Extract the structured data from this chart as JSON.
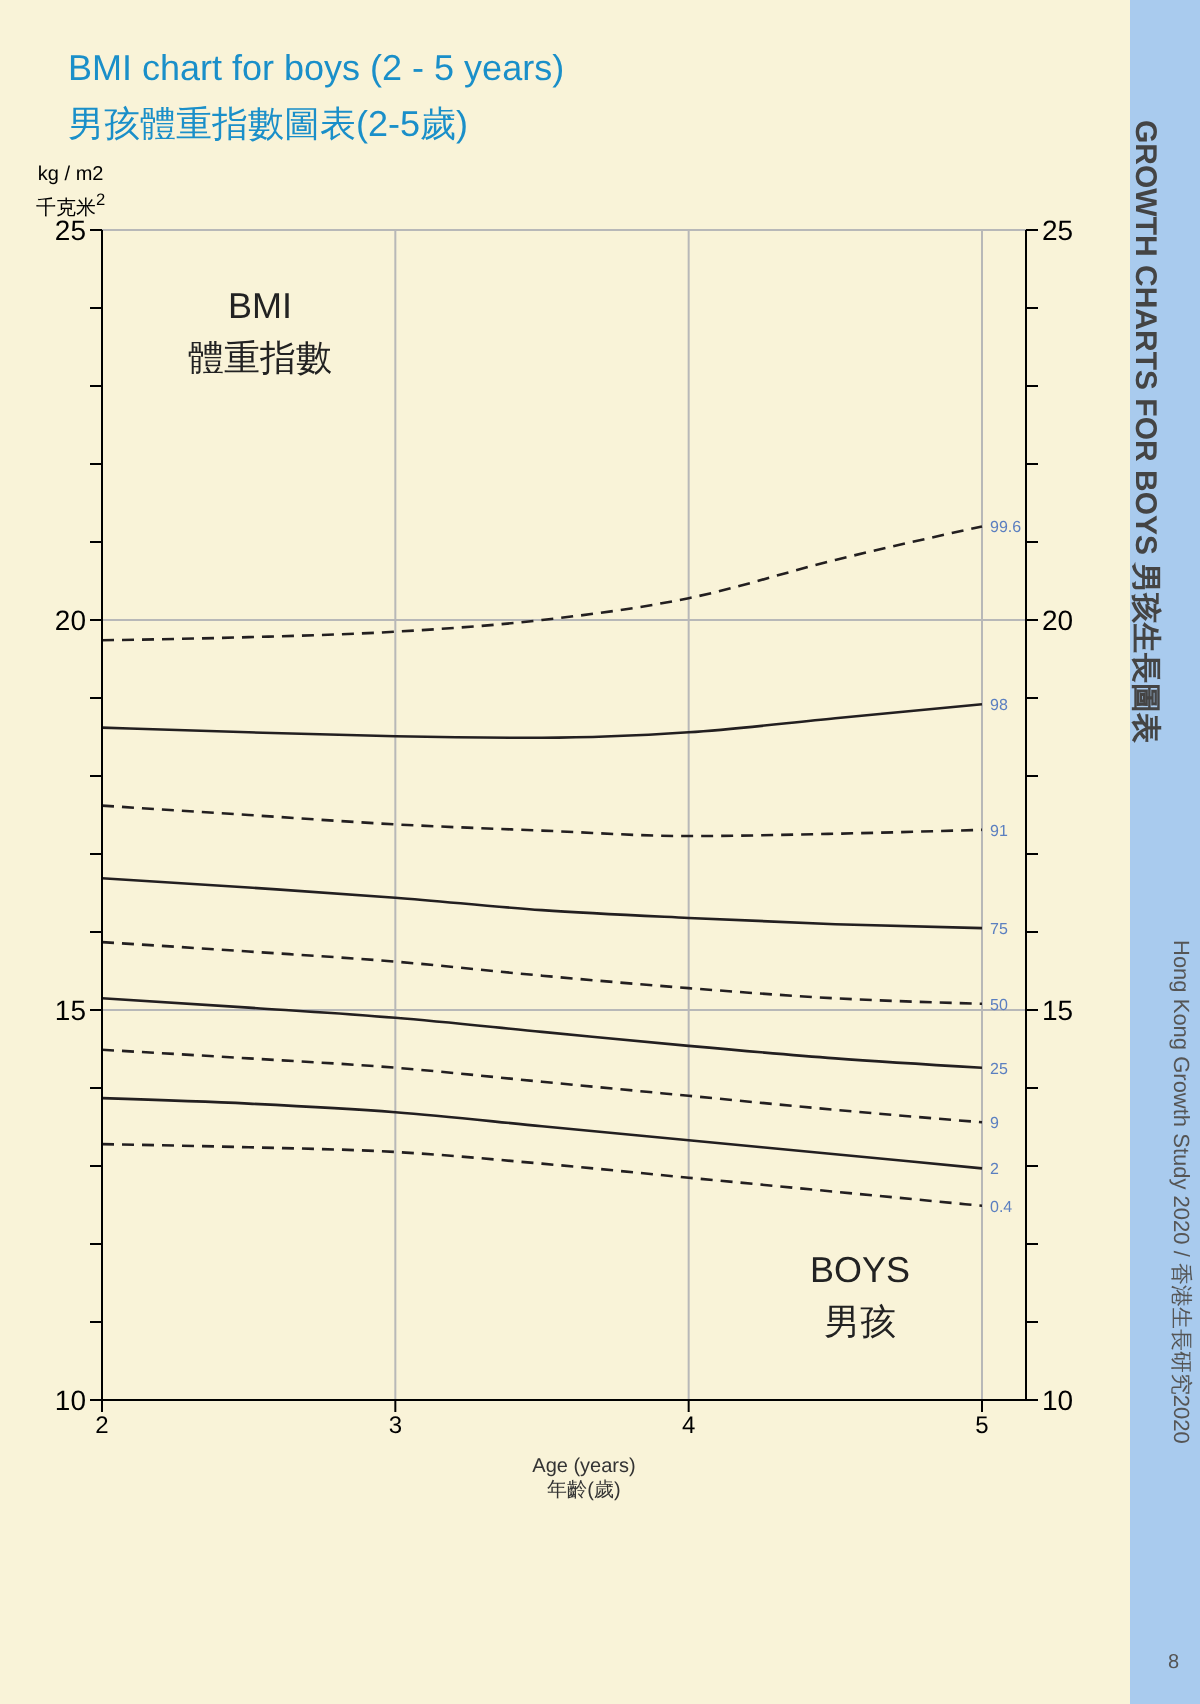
{
  "chart_data": {
    "type": "line",
    "title": "BMI chart for boys (2 - 5 years)",
    "subtitle": "男孩體重指數圖表(2-5歲)",
    "xlabel": "Age (years)\n年齡(歲)",
    "ylabel": "kg / m2\n千克米$^{2}$",
    "x": [
      2,
      2.5,
      3,
      3.5,
      4,
      4.5,
      5
    ],
    "series": [
      {
        "name": "99.6",
        "color": "#231f20",
        "line_style": "dashed",
        "values": [
          19.74,
          19.78,
          19.85,
          20.0,
          20.28,
          20.77,
          21.2
        ]
      },
      {
        "name": "98",
        "color": "#231f20",
        "line_style": "solid",
        "values": [
          18.62,
          18.56,
          18.51,
          18.49,
          18.56,
          18.74,
          18.92
        ]
      },
      {
        "name": "91",
        "color": "#231f20",
        "line_style": "dashed",
        "values": [
          17.62,
          17.5,
          17.38,
          17.3,
          17.23,
          17.26,
          17.31
        ]
      },
      {
        "name": "75",
        "color": "#231f20",
        "line_style": "solid",
        "values": [
          16.69,
          16.57,
          16.44,
          16.28,
          16.18,
          16.1,
          16.05
        ]
      },
      {
        "name": "50",
        "color": "#231f20",
        "line_style": "dashed",
        "values": [
          15.87,
          15.75,
          15.62,
          15.44,
          15.28,
          15.15,
          15.08
        ]
      },
      {
        "name": "25",
        "color": "#231f20",
        "line_style": "solid",
        "values": [
          15.15,
          15.03,
          14.9,
          14.72,
          14.54,
          14.38,
          14.26
        ]
      },
      {
        "name": "9",
        "color": "#231f20",
        "line_style": "dashed",
        "values": [
          14.49,
          14.38,
          14.26,
          14.08,
          13.9,
          13.72,
          13.56
        ]
      },
      {
        "name": "2",
        "color": "#231f20",
        "line_style": "solid",
        "values": [
          13.87,
          13.8,
          13.69,
          13.51,
          13.33,
          13.15,
          12.97
        ]
      },
      {
        "name": "0.4",
        "color": "#231f20",
        "line_style": "dashed",
        "values": [
          13.28,
          13.24,
          13.18,
          13.03,
          12.85,
          12.67,
          12.49
        ]
      }
    ],
    "xlim": [
      2,
      5.15
    ],
    "xticks": [
      2,
      3,
      4,
      5
    ],
    "ylim": [
      10,
      25
    ],
    "yticks": [
      10,
      {
        "value": 11,
        "label": null
      },
      {
        "value": 12,
        "label": null
      },
      {
        "value": 13,
        "label": null
      },
      {
        "value": 14,
        "label": null
      },
      15,
      {
        "value": 16,
        "label": null
      },
      {
        "value": 17,
        "label": null
      },
      {
        "value": 18,
        "label": null
      },
      {
        "value": 19,
        "label": null
      },
      20,
      {
        "value": 21,
        "label": null
      },
      {
        "value": 22,
        "label": null
      },
      {
        "value": 23,
        "label": null
      },
      {
        "value": 24,
        "label": null
      },
      25
    ],
    "y2lim": [
      10,
      25
    ],
    "y2ticks": [
      10,
      {
        "value": 11,
        "label": null
      },
      {
        "value": 12,
        "label": null
      },
      {
        "value": 13,
        "label": null
      },
      {
        "value": 14,
        "label": null
      },
      15,
      {
        "value": 16,
        "label": null
      },
      {
        "value": 17,
        "label": null
      },
      {
        "value": 18,
        "label": null
      },
      {
        "value": 19,
        "label": null
      },
      20,
      {
        "value": 21,
        "label": null
      },
      {
        "value": 22,
        "label": null
      },
      {
        "value": 23,
        "label": null
      },
      {
        "value": 24,
        "label": null
      },
      25
    ],
    "grid": true,
    "marker": "none",
    "annotations": [
      "BMI\n體重指數",
      "BOYS\n男孩",
      "GROWTH CHARTS FOR BOYS 男孩生長圖表",
      "Hong Kong Growth Study 2020 / 香港生長研究2020",
      "8"
    ]
  }
}
